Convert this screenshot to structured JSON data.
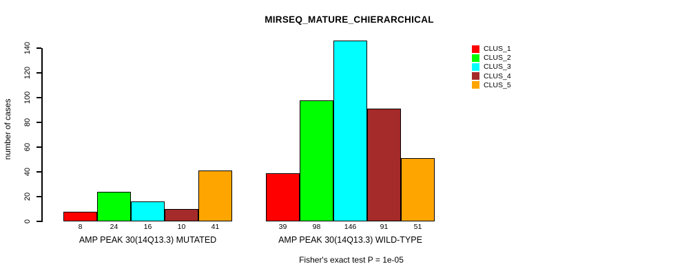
{
  "chart_data": {
    "type": "bar",
    "title": "MIRSEQ_MATURE_CHIERARCHICAL",
    "ylabel": "number of cases",
    "xlabel": "",
    "ylim": [
      0,
      146
    ],
    "yticks": [
      0,
      20,
      40,
      60,
      80,
      100,
      120,
      140
    ],
    "grid": false,
    "legend_position": "right",
    "legend": [
      {
        "label": "CLUS_1",
        "color": "#FF0000"
      },
      {
        "label": "CLUS_2",
        "color": "#00FF00"
      },
      {
        "label": "CLUS_3",
        "color": "#00FFFF"
      },
      {
        "label": "CLUS_4",
        "color": "#A52A2A"
      },
      {
        "label": "CLUS_5",
        "color": "#FFA500"
      }
    ],
    "groups": [
      {
        "label": "AMP PEAK 30(14Q13.3) MUTATED",
        "values": [
          8,
          24,
          16,
          10,
          41
        ]
      },
      {
        "label": "AMP PEAK 30(14Q13.3) WILD-TYPE",
        "values": [
          39,
          98,
          146,
          91,
          51
        ]
      }
    ],
    "bar_border_color": "#000000",
    "axis_color": "#000000",
    "background_color": "#FFFFFF",
    "footnote": "Fisher's exact test P = 1e-05"
  }
}
